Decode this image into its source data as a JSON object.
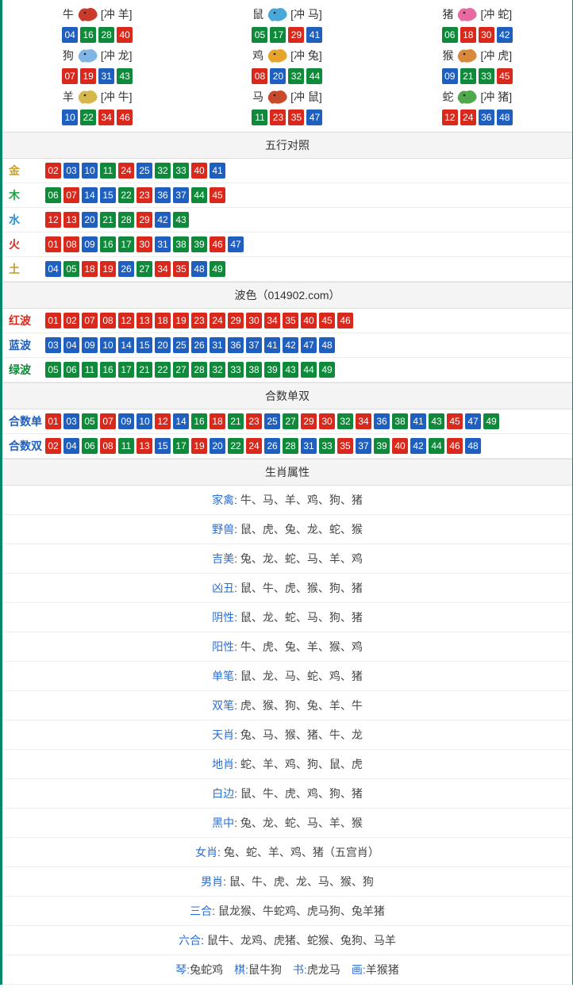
{
  "ball_colors": {
    "red": "#d9291c",
    "blue": "#1f5fbf",
    "green": "#0f8a3a"
  },
  "zodiac": [
    {
      "name": "牛",
      "chong": "[冲 羊]",
      "icon_color": "#c93a2a",
      "balls": [
        {
          "n": "04",
          "c": "blue"
        },
        {
          "n": "16",
          "c": "green"
        },
        {
          "n": "28",
          "c": "green"
        },
        {
          "n": "40",
          "c": "red"
        }
      ]
    },
    {
      "name": "鼠",
      "chong": "[冲 马]",
      "icon_color": "#4aa8d8",
      "balls": [
        {
          "n": "05",
          "c": "green"
        },
        {
          "n": "17",
          "c": "green"
        },
        {
          "n": "29",
          "c": "red"
        },
        {
          "n": "41",
          "c": "blue"
        }
      ]
    },
    {
      "name": "猪",
      "chong": "[冲 蛇]",
      "icon_color": "#e76aa0",
      "balls": [
        {
          "n": "06",
          "c": "green"
        },
        {
          "n": "18",
          "c": "red"
        },
        {
          "n": "30",
          "c": "red"
        },
        {
          "n": "42",
          "c": "blue"
        }
      ]
    },
    {
      "name": "狗",
      "chong": "[冲 龙]",
      "icon_color": "#7fb6e6",
      "balls": [
        {
          "n": "07",
          "c": "red"
        },
        {
          "n": "19",
          "c": "red"
        },
        {
          "n": "31",
          "c": "blue"
        },
        {
          "n": "43",
          "c": "green"
        }
      ]
    },
    {
      "name": "鸡",
      "chong": "[冲 兔]",
      "icon_color": "#e6a42a",
      "balls": [
        {
          "n": "08",
          "c": "red"
        },
        {
          "n": "20",
          "c": "blue"
        },
        {
          "n": "32",
          "c": "green"
        },
        {
          "n": "44",
          "c": "green"
        }
      ]
    },
    {
      "name": "猴",
      "chong": "[冲 虎]",
      "icon_color": "#d88a3a",
      "balls": [
        {
          "n": "09",
          "c": "blue"
        },
        {
          "n": "21",
          "c": "green"
        },
        {
          "n": "33",
          "c": "green"
        },
        {
          "n": "45",
          "c": "red"
        }
      ]
    },
    {
      "name": "羊",
      "chong": "[冲 牛]",
      "icon_color": "#d6b84a",
      "balls": [
        {
          "n": "10",
          "c": "blue"
        },
        {
          "n": "22",
          "c": "green"
        },
        {
          "n": "34",
          "c": "red"
        },
        {
          "n": "46",
          "c": "red"
        }
      ]
    },
    {
      "name": "马",
      "chong": "[冲 鼠]",
      "icon_color": "#c94a2a",
      "balls": [
        {
          "n": "11",
          "c": "green"
        },
        {
          "n": "23",
          "c": "red"
        },
        {
          "n": "35",
          "c": "red"
        },
        {
          "n": "47",
          "c": "blue"
        }
      ]
    },
    {
      "name": "蛇",
      "chong": "[冲 猪]",
      "icon_color": "#4fa84a",
      "balls": [
        {
          "n": "12",
          "c": "red"
        },
        {
          "n": "24",
          "c": "red"
        },
        {
          "n": "36",
          "c": "blue"
        },
        {
          "n": "48",
          "c": "blue"
        }
      ]
    }
  ],
  "sections": {
    "wuxing": {
      "title": "五行对照",
      "rows": [
        {
          "label": "金",
          "style": "gold",
          "balls": [
            {
              "n": "02",
              "c": "red"
            },
            {
              "n": "03",
              "c": "blue"
            },
            {
              "n": "10",
              "c": "blue"
            },
            {
              "n": "11",
              "c": "green"
            },
            {
              "n": "24",
              "c": "red"
            },
            {
              "n": "25",
              "c": "blue"
            },
            {
              "n": "32",
              "c": "green"
            },
            {
              "n": "33",
              "c": "green"
            },
            {
              "n": "40",
              "c": "red"
            },
            {
              "n": "41",
              "c": "blue"
            }
          ]
        },
        {
          "label": "木",
          "style": "wood",
          "balls": [
            {
              "n": "06",
              "c": "green"
            },
            {
              "n": "07",
              "c": "red"
            },
            {
              "n": "14",
              "c": "blue"
            },
            {
              "n": "15",
              "c": "blue"
            },
            {
              "n": "22",
              "c": "green"
            },
            {
              "n": "23",
              "c": "red"
            },
            {
              "n": "36",
              "c": "blue"
            },
            {
              "n": "37",
              "c": "blue"
            },
            {
              "n": "44",
              "c": "green"
            },
            {
              "n": "45",
              "c": "red"
            }
          ]
        },
        {
          "label": "水",
          "style": "water",
          "balls": [
            {
              "n": "12",
              "c": "red"
            },
            {
              "n": "13",
              "c": "red"
            },
            {
              "n": "20",
              "c": "blue"
            },
            {
              "n": "21",
              "c": "green"
            },
            {
              "n": "28",
              "c": "green"
            },
            {
              "n": "29",
              "c": "red"
            },
            {
              "n": "42",
              "c": "blue"
            },
            {
              "n": "43",
              "c": "green"
            }
          ]
        },
        {
          "label": "火",
          "style": "fire",
          "balls": [
            {
              "n": "01",
              "c": "red"
            },
            {
              "n": "08",
              "c": "red"
            },
            {
              "n": "09",
              "c": "blue"
            },
            {
              "n": "16",
              "c": "green"
            },
            {
              "n": "17",
              "c": "green"
            },
            {
              "n": "30",
              "c": "red"
            },
            {
              "n": "31",
              "c": "blue"
            },
            {
              "n": "38",
              "c": "green"
            },
            {
              "n": "39",
              "c": "green"
            },
            {
              "n": "46",
              "c": "red"
            },
            {
              "n": "47",
              "c": "blue"
            }
          ]
        },
        {
          "label": "土",
          "style": "earth",
          "balls": [
            {
              "n": "04",
              "c": "blue"
            },
            {
              "n": "05",
              "c": "green"
            },
            {
              "n": "18",
              "c": "red"
            },
            {
              "n": "19",
              "c": "red"
            },
            {
              "n": "26",
              "c": "blue"
            },
            {
              "n": "27",
              "c": "green"
            },
            {
              "n": "34",
              "c": "red"
            },
            {
              "n": "35",
              "c": "red"
            },
            {
              "n": "48",
              "c": "blue"
            },
            {
              "n": "49",
              "c": "green"
            }
          ]
        }
      ]
    },
    "bose": {
      "title": "波色（014902.com）",
      "rows": [
        {
          "label": "红波",
          "style": "redt",
          "balls": [
            {
              "n": "01",
              "c": "red"
            },
            {
              "n": "02",
              "c": "red"
            },
            {
              "n": "07",
              "c": "red"
            },
            {
              "n": "08",
              "c": "red"
            },
            {
              "n": "12",
              "c": "red"
            },
            {
              "n": "13",
              "c": "red"
            },
            {
              "n": "18",
              "c": "red"
            },
            {
              "n": "19",
              "c": "red"
            },
            {
              "n": "23",
              "c": "red"
            },
            {
              "n": "24",
              "c": "red"
            },
            {
              "n": "29",
              "c": "red"
            },
            {
              "n": "30",
              "c": "red"
            },
            {
              "n": "34",
              "c": "red"
            },
            {
              "n": "35",
              "c": "red"
            },
            {
              "n": "40",
              "c": "red"
            },
            {
              "n": "45",
              "c": "red"
            },
            {
              "n": "46",
              "c": "red"
            }
          ]
        },
        {
          "label": "蓝波",
          "style": "bluet",
          "balls": [
            {
              "n": "03",
              "c": "blue"
            },
            {
              "n": "04",
              "c": "blue"
            },
            {
              "n": "09",
              "c": "blue"
            },
            {
              "n": "10",
              "c": "blue"
            },
            {
              "n": "14",
              "c": "blue"
            },
            {
              "n": "15",
              "c": "blue"
            },
            {
              "n": "20",
              "c": "blue"
            },
            {
              "n": "25",
              "c": "blue"
            },
            {
              "n": "26",
              "c": "blue"
            },
            {
              "n": "31",
              "c": "blue"
            },
            {
              "n": "36",
              "c": "blue"
            },
            {
              "n": "37",
              "c": "blue"
            },
            {
              "n": "41",
              "c": "blue"
            },
            {
              "n": "42",
              "c": "blue"
            },
            {
              "n": "47",
              "c": "blue"
            },
            {
              "n": "48",
              "c": "blue"
            }
          ]
        },
        {
          "label": "绿波",
          "style": "greent",
          "balls": [
            {
              "n": "05",
              "c": "green"
            },
            {
              "n": "06",
              "c": "green"
            },
            {
              "n": "11",
              "c": "green"
            },
            {
              "n": "16",
              "c": "green"
            },
            {
              "n": "17",
              "c": "green"
            },
            {
              "n": "21",
              "c": "green"
            },
            {
              "n": "22",
              "c": "green"
            },
            {
              "n": "27",
              "c": "green"
            },
            {
              "n": "28",
              "c": "green"
            },
            {
              "n": "32",
              "c": "green"
            },
            {
              "n": "33",
              "c": "green"
            },
            {
              "n": "38",
              "c": "green"
            },
            {
              "n": "39",
              "c": "green"
            },
            {
              "n": "43",
              "c": "green"
            },
            {
              "n": "44",
              "c": "green"
            },
            {
              "n": "49",
              "c": "green"
            }
          ]
        }
      ]
    },
    "heshu": {
      "title": "合数单双",
      "rows": [
        {
          "label": "合数单",
          "style": "plain",
          "balls": [
            {
              "n": "01",
              "c": "red"
            },
            {
              "n": "03",
              "c": "blue"
            },
            {
              "n": "05",
              "c": "green"
            },
            {
              "n": "07",
              "c": "red"
            },
            {
              "n": "09",
              "c": "blue"
            },
            {
              "n": "10",
              "c": "blue"
            },
            {
              "n": "12",
              "c": "red"
            },
            {
              "n": "14",
              "c": "blue"
            },
            {
              "n": "16",
              "c": "green"
            },
            {
              "n": "18",
              "c": "red"
            },
            {
              "n": "21",
              "c": "green"
            },
            {
              "n": "23",
              "c": "red"
            },
            {
              "n": "25",
              "c": "blue"
            },
            {
              "n": "27",
              "c": "green"
            },
            {
              "n": "29",
              "c": "red"
            },
            {
              "n": "30",
              "c": "red"
            },
            {
              "n": "32",
              "c": "green"
            },
            {
              "n": "34",
              "c": "red"
            },
            {
              "n": "36",
              "c": "blue"
            },
            {
              "n": "38",
              "c": "green"
            },
            {
              "n": "41",
              "c": "blue"
            },
            {
              "n": "43",
              "c": "green"
            },
            {
              "n": "45",
              "c": "red"
            },
            {
              "n": "47",
              "c": "blue"
            },
            {
              "n": "49",
              "c": "green"
            }
          ]
        },
        {
          "label": "合数双",
          "style": "plain",
          "balls": [
            {
              "n": "02",
              "c": "red"
            },
            {
              "n": "04",
              "c": "blue"
            },
            {
              "n": "06",
              "c": "green"
            },
            {
              "n": "08",
              "c": "red"
            },
            {
              "n": "11",
              "c": "green"
            },
            {
              "n": "13",
              "c": "red"
            },
            {
              "n": "15",
              "c": "blue"
            },
            {
              "n": "17",
              "c": "green"
            },
            {
              "n": "19",
              "c": "red"
            },
            {
              "n": "20",
              "c": "blue"
            },
            {
              "n": "22",
              "c": "green"
            },
            {
              "n": "24",
              "c": "red"
            },
            {
              "n": "26",
              "c": "blue"
            },
            {
              "n": "28",
              "c": "green"
            },
            {
              "n": "31",
              "c": "blue"
            },
            {
              "n": "33",
              "c": "green"
            },
            {
              "n": "35",
              "c": "red"
            },
            {
              "n": "37",
              "c": "blue"
            },
            {
              "n": "39",
              "c": "green"
            },
            {
              "n": "40",
              "c": "red"
            },
            {
              "n": "42",
              "c": "blue"
            },
            {
              "n": "44",
              "c": "green"
            },
            {
              "n": "46",
              "c": "red"
            },
            {
              "n": "48",
              "c": "blue"
            }
          ]
        }
      ]
    },
    "shuxing": {
      "title": "生肖属性",
      "rows": [
        {
          "k": "家禽",
          "v": "牛、马、羊、鸡、狗、猪"
        },
        {
          "k": "野兽",
          "v": "鼠、虎、兔、龙、蛇、猴"
        },
        {
          "k": "吉美",
          "v": "兔、龙、蛇、马、羊、鸡"
        },
        {
          "k": "凶丑",
          "v": "鼠、牛、虎、猴、狗、猪"
        },
        {
          "k": "阴性",
          "v": "鼠、龙、蛇、马、狗、猪"
        },
        {
          "k": "阳性",
          "v": "牛、虎、兔、羊、猴、鸡"
        },
        {
          "k": "单笔",
          "v": "鼠、龙、马、蛇、鸡、猪"
        },
        {
          "k": "双笔",
          "v": "虎、猴、狗、兔、羊、牛"
        },
        {
          "k": "天肖",
          "v": "兔、马、猴、猪、牛、龙"
        },
        {
          "k": "地肖",
          "v": "蛇、羊、鸡、狗、鼠、虎"
        },
        {
          "k": "白边",
          "v": "鼠、牛、虎、鸡、狗、猪"
        },
        {
          "k": "黑中",
          "v": "兔、龙、蛇、马、羊、猴"
        },
        {
          "k": "女肖",
          "v": "兔、蛇、羊、鸡、猪（五宫肖）"
        },
        {
          "k": "男肖",
          "v": "鼠、牛、虎、龙、马、猴、狗"
        },
        {
          "k": "三合",
          "v": "鼠龙猴、牛蛇鸡、虎马狗、兔羊猪"
        },
        {
          "k": "六合",
          "v": "鼠牛、龙鸡、虎猪、蛇猴、兔狗、马羊"
        }
      ],
      "footer": {
        "parts": [
          {
            "k": "琴",
            "v": "兔蛇鸡"
          },
          {
            "k": "棋",
            "v": "鼠牛狗"
          },
          {
            "k": "书",
            "v": "虎龙马"
          },
          {
            "k": "画",
            "v": "羊猴猪"
          }
        ]
      }
    }
  }
}
